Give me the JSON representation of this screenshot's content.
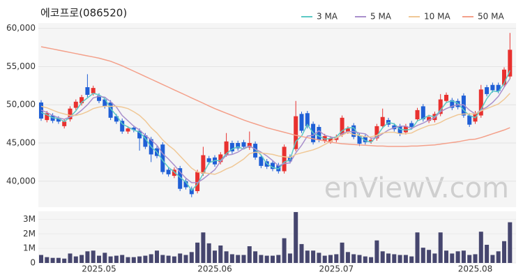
{
  "title": "에코프로(086520)",
  "watermark": "enViewV.com",
  "chart_data": [
    {
      "type": "candlestick",
      "up_color": "#e8312f",
      "down_color": "#1f5fd6",
      "grid": true,
      "legend": "top-right",
      "ylim": [
        36600,
        60700
      ],
      "yticks": [
        {
          "value": 40000,
          "label": "40,000"
        },
        {
          "value": 45000,
          "label": "45,000"
        },
        {
          "value": 50000,
          "label": "50,000"
        },
        {
          "value": 55000,
          "label": "55,000"
        },
        {
          "value": 60000,
          "label": "60,000"
        }
      ],
      "open": [
        50300,
        48000,
        48600,
        48200,
        47200,
        48100,
        49600,
        50200,
        52300,
        51500,
        51200,
        50700,
        50300,
        48500,
        47900,
        46500,
        47000,
        46600,
        46000,
        45500,
        44300,
        44800,
        41500,
        40700,
        41700,
        40000,
        39000,
        38700,
        41000,
        43000,
        43100,
        42500,
        43500,
        45000,
        45000,
        45100,
        44400,
        44900,
        43200,
        42600,
        42400,
        42100,
        41300,
        43200,
        44200,
        48800,
        48900,
        47500,
        47100,
        45300,
        45200,
        45400,
        46100,
        46500,
        47300,
        46000,
        45800,
        45200,
        45600,
        47200,
        48000,
        47300,
        47200,
        46400,
        47600,
        48100,
        49800,
        47900,
        48000,
        48800,
        50500,
        50600,
        50500,
        51200,
        48600,
        47800,
        48600,
        52300,
        52600,
        52600,
        52600,
        53700
      ],
      "high": [
        50600,
        49200,
        48900,
        48500,
        48100,
        49800,
        50700,
        51300,
        54000,
        52500,
        51500,
        51000,
        50600,
        48800,
        48200,
        47200,
        47300,
        46900,
        46300,
        45800,
        44600,
        45100,
        41800,
        41800,
        42000,
        40300,
        39300,
        41500,
        44500,
        43300,
        43400,
        43800,
        46300,
        45300,
        45300,
        45400,
        46500,
        45200,
        43500,
        42900,
        42700,
        42400,
        44800,
        43500,
        50500,
        49100,
        49200,
        47800,
        47400,
        46200,
        45900,
        46100,
        48600,
        47200,
        47600,
        46300,
        46100,
        45700,
        47500,
        49500,
        48300,
        47600,
        47500,
        47500,
        47900,
        49600,
        50100,
        48700,
        49100,
        51400,
        51600,
        50900,
        50800,
        51500,
        48900,
        49200,
        52600,
        52600,
        52900,
        52900,
        54900,
        59400
      ],
      "low": [
        47900,
        47700,
        47600,
        47500,
        46900,
        47800,
        49300,
        49900,
        51000,
        51200,
        50200,
        49500,
        48000,
        47500,
        46200,
        46200,
        46400,
        44000,
        44200,
        42500,
        43000,
        40900,
        40600,
        40400,
        38700,
        38900,
        37900,
        38400,
        40700,
        42200,
        41900,
        42200,
        43200,
        43600,
        44000,
        44200,
        44100,
        42800,
        41700,
        41600,
        41300,
        41000,
        41000,
        42300,
        43900,
        46300,
        46900,
        44800,
        45100,
        45000,
        44900,
        45100,
        45800,
        46200,
        45500,
        44600,
        44800,
        44900,
        45300,
        46900,
        47100,
        46500,
        45900,
        46100,
        46800,
        47800,
        47800,
        47600,
        47700,
        48500,
        50200,
        49300,
        49400,
        48300,
        47100,
        47500,
        48300,
        51100,
        51600,
        51500,
        52300,
        53400
      ],
      "close": [
        48200,
        48900,
        47900,
        47800,
        47800,
        49500,
        50400,
        51000,
        51300,
        52200,
        50500,
        49800,
        48300,
        47800,
        46500,
        46900,
        46700,
        45600,
        44500,
        43500,
        43300,
        41200,
        40900,
        41500,
        39000,
        39200,
        38300,
        41200,
        43400,
        42500,
        42200,
        43500,
        45200,
        43900,
        44300,
        44500,
        45000,
        43100,
        42000,
        41900,
        41600,
        41300,
        44500,
        42600,
        48500,
        46600,
        47200,
        45100,
        45400,
        45900,
        45600,
        45800,
        48300,
        46900,
        45800,
        44900,
        45100,
        45400,
        47200,
        48400,
        47400,
        46800,
        46200,
        47200,
        47100,
        49300,
        48100,
        48400,
        48800,
        50700,
        51300,
        49600,
        49700,
        48600,
        47400,
        48900,
        52000,
        51400,
        51900,
        51800,
        54600,
        57200
      ],
      "series": [
        {
          "name": "3 MA",
          "color": "#5cc9c4",
          "values": [
            49000,
            48700,
            48300,
            48200,
            47800,
            48400,
            49200,
            50300,
            50900,
            51500,
            51300,
            50800,
            49500,
            48600,
            47500,
            47100,
            46700,
            46400,
            45600,
            44500,
            43800,
            42700,
            41800,
            41200,
            40500,
            39900,
            38800,
            39600,
            41000,
            42400,
            42700,
            42700,
            43600,
            44200,
            44500,
            44200,
            44600,
            44200,
            43400,
            42300,
            41800,
            41600,
            42500,
            42800,
            45200,
            45900,
            47400,
            46300,
            45900,
            45500,
            45600,
            45800,
            46600,
            47000,
            47000,
            45900,
            45300,
            45100,
            45900,
            47000,
            47700,
            47500,
            46800,
            46700,
            46800,
            47900,
            48200,
            48600,
            48400,
            49300,
            50300,
            50500,
            50200,
            49300,
            48600,
            48300,
            49400,
            50800,
            51800,
            51700,
            52800,
            54500
          ]
        },
        {
          "name": "5 MA",
          "color": "#a98fcc",
          "values": [
            49300,
            49000,
            48600,
            48300,
            48100,
            48400,
            48700,
            49300,
            50000,
            50900,
            51100,
            51000,
            50400,
            49700,
            48600,
            47900,
            47200,
            46700,
            46000,
            45400,
            44700,
            43600,
            42900,
            42100,
            41200,
            40400,
            39800,
            39800,
            40300,
            40900,
            41500,
            42600,
            43400,
            43500,
            43800,
            44300,
            44600,
            44200,
            43800,
            43300,
            42700,
            42000,
            42300,
            42400,
            43700,
            44700,
            45900,
            46000,
            46600,
            46000,
            45800,
            45600,
            46200,
            46500,
            46500,
            46300,
            46200,
            45600,
            45700,
            46200,
            46700,
            47000,
            47200,
            47200,
            46900,
            47300,
            47600,
            48000,
            48300,
            49100,
            49500,
            49800,
            50000,
            50000,
            49300,
            48800,
            49300,
            49700,
            50300,
            51100,
            52300,
            53400
          ]
        },
        {
          "name": "10 MA",
          "color": "#f0c896",
          "values": [
            49800,
            49600,
            49300,
            49000,
            48800,
            48600,
            48600,
            48800,
            49100,
            49500,
            49700,
            49800,
            49800,
            49800,
            49700,
            49500,
            49100,
            48600,
            47900,
            47000,
            46300,
            45400,
            44700,
            44100,
            43300,
            42500,
            41700,
            41200,
            41100,
            41000,
            40900,
            41200,
            41600,
            41900,
            42400,
            42900,
            43600,
            43800,
            43700,
            43600,
            43500,
            43300,
            43200,
            43100,
            43500,
            43700,
            43900,
            44100,
            44400,
            44800,
            45200,
            45700,
            46000,
            46400,
            46100,
            46000,
            45800,
            45800,
            46000,
            46300,
            46400,
            46400,
            46200,
            46200,
            46300,
            46700,
            47000,
            47300,
            47400,
            47700,
            48100,
            48400,
            48700,
            48800,
            48800,
            48800,
            49200,
            49500,
            49800,
            50100,
            50700,
            51500
          ]
        },
        {
          "name": "50 MA",
          "color": "#f4a08a",
          "values": [
            57600,
            57450,
            57300,
            57150,
            57000,
            56850,
            56700,
            56550,
            56400,
            56250,
            56100,
            55900,
            55700,
            55400,
            55100,
            54750,
            54400,
            54050,
            53700,
            53350,
            53000,
            52650,
            52300,
            51950,
            51600,
            51250,
            50900,
            50550,
            50200,
            49850,
            49500,
            49200,
            48900,
            48600,
            48300,
            48000,
            47750,
            47500,
            47250,
            47000,
            46800,
            46600,
            46400,
            46200,
            46000,
            45850,
            45700,
            45550,
            45400,
            45250,
            45100,
            45000,
            44900,
            44850,
            44800,
            44750,
            44700,
            44650,
            44600,
            44600,
            44550,
            44550,
            44550,
            44550,
            44600,
            44600,
            44650,
            44700,
            44750,
            44850,
            44950,
            45050,
            45150,
            45300,
            45450,
            45500,
            45700,
            45950,
            46200,
            46450,
            46700,
            47000
          ]
        }
      ]
    },
    {
      "type": "bar",
      "color": "#46466e",
      "ylim": [
        0,
        3550000
      ],
      "yticks": [
        0,
        {
          "value": 1000000,
          "label": "1M"
        },
        {
          "value": 2000000,
          "label": "2M"
        },
        {
          "value": 3000000,
          "label": "3M"
        }
      ],
      "categories": [
        null,
        null,
        null,
        null,
        null,
        null,
        null,
        null,
        null,
        null,
        "2025.05",
        null,
        null,
        null,
        null,
        null,
        null,
        null,
        null,
        null,
        null,
        null,
        null,
        null,
        null,
        null,
        null,
        null,
        null,
        null,
        "2025.06",
        null,
        null,
        null,
        null,
        null,
        null,
        null,
        null,
        null,
        null,
        null,
        null,
        null,
        null,
        null,
        null,
        null,
        null,
        null,
        null,
        "2025.07",
        null,
        null,
        null,
        null,
        null,
        null,
        null,
        null,
        null,
        null,
        null,
        null,
        null,
        null,
        null,
        null,
        null,
        null,
        null,
        null,
        null,
        null,
        null,
        "2025.08",
        null,
        null,
        null,
        null,
        null,
        null
      ],
      "values": [
        550000,
        400000,
        350000,
        350000,
        300000,
        650000,
        450000,
        550000,
        800000,
        850000,
        500000,
        700000,
        450000,
        500000,
        550000,
        400000,
        400000,
        450000,
        500000,
        600000,
        850000,
        550000,
        500000,
        450000,
        650000,
        550000,
        750000,
        1400000,
        2100000,
        1350000,
        850000,
        1200000,
        800000,
        600000,
        550000,
        550000,
        1150000,
        800000,
        550000,
        500000,
        500000,
        550000,
        1700000,
        650000,
        3500000,
        1300000,
        850000,
        850000,
        700000,
        500000,
        550000,
        600000,
        1400000,
        750000,
        600000,
        550000,
        450000,
        400000,
        1550000,
        800000,
        650000,
        600000,
        550000,
        550000,
        450000,
        2100000,
        1050000,
        900000,
        650000,
        2100000,
        850000,
        650000,
        800000,
        850000,
        550000,
        600000,
        2150000,
        1250000,
        550000,
        800000,
        1500000,
        2800000
      ]
    }
  ]
}
